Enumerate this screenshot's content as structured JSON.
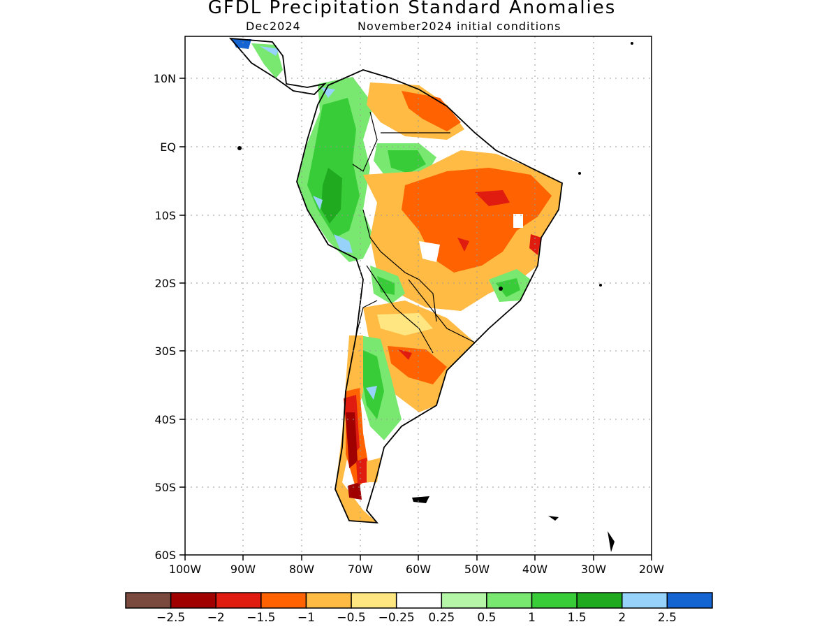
{
  "title": "GFDL Precipitation Standard Anomalies",
  "subtitle_left": "Dec2024",
  "subtitle_right": "November2024 initial conditions",
  "lat_labels": [
    "10N",
    "EQ",
    "10S",
    "20S",
    "30S",
    "40S",
    "50S",
    "60S"
  ],
  "lon_labels": [
    "100W",
    "90W",
    "80W",
    "70W",
    "60W",
    "50W",
    "40W",
    "30W",
    "20W"
  ],
  "legend": {
    "colors": [
      "#7a4a3f",
      "#a00000",
      "#e01b10",
      "#ff6200",
      "#ffbb44",
      "#ffe680",
      "#ffffff",
      "#b4f5a8",
      "#78e870",
      "#38cc38",
      "#20aa20",
      "#96d2fa",
      "#1464d2"
    ],
    "labels": [
      "-2.5",
      "-2",
      "-1.5",
      "-1",
      "-0.5",
      "-0.25",
      "0.25",
      "0.5",
      "1",
      "1.5",
      "2",
      "2.5"
    ]
  }
}
